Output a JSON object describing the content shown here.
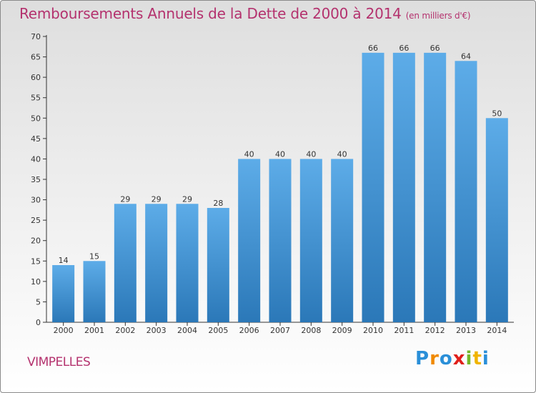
{
  "header": {
    "title": "Remboursements Annuels de la Dette de 2000 à 2014",
    "subtitle": "(en milliers d'€)"
  },
  "footer": {
    "commune": "VIMPELLES",
    "logo_letters": [
      "P",
      "r",
      "o",
      "x",
      "i",
      "t",
      "i"
    ],
    "logo_colors": [
      "#2a8fd8",
      "#f08a00",
      "#2a8fd8",
      "#e0201b",
      "#76b82a",
      "#f0b400",
      "#2a8fd8"
    ]
  },
  "colors": {
    "bar_light": "#5dace8",
    "bar_dark": "#2b78b8",
    "title": "#b4326e"
  },
  "chart_data": {
    "type": "bar",
    "title": "Remboursements Annuels de la Dette de 2000 à 2014",
    "xlabel": "",
    "ylabel": "",
    "ylim": [
      0,
      70
    ],
    "yticks": [
      0,
      5,
      10,
      15,
      20,
      25,
      30,
      35,
      40,
      45,
      50,
      55,
      60,
      65,
      70
    ],
    "categories": [
      "2000",
      "2001",
      "2002",
      "2003",
      "2004",
      "2005",
      "2006",
      "2007",
      "2008",
      "2009",
      "2010",
      "2011",
      "2012",
      "2013",
      "2014"
    ],
    "values": [
      14,
      15,
      29,
      29,
      29,
      28,
      40,
      40,
      40,
      40,
      66,
      66,
      66,
      64,
      50
    ],
    "grid": false
  }
}
